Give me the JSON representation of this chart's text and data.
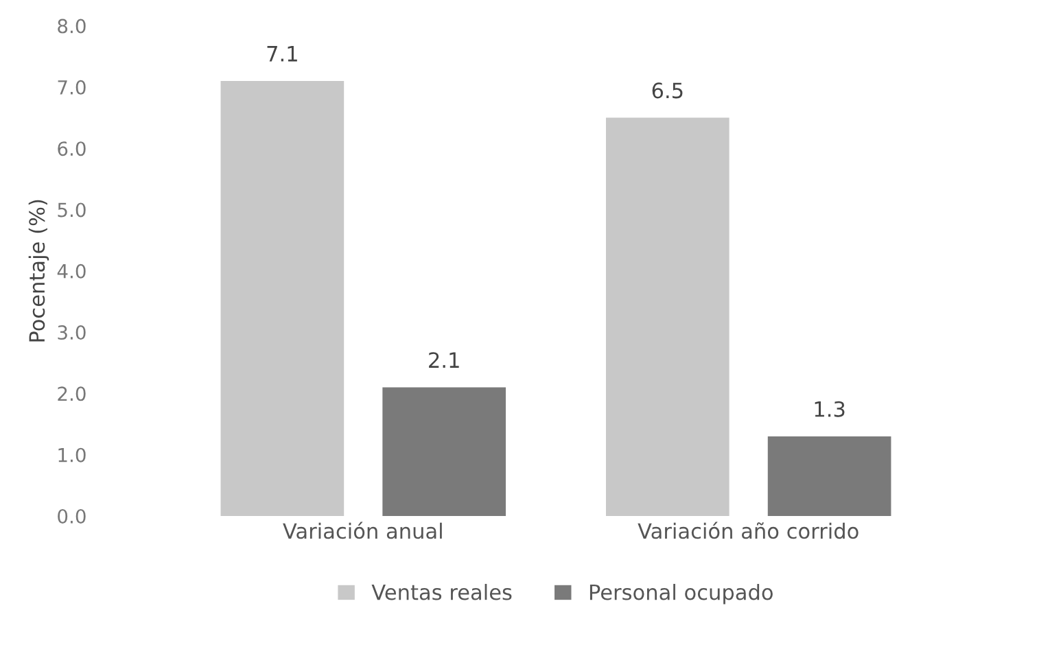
{
  "chart_data": {
    "type": "bar",
    "ylabel": "Pocentaje (%)",
    "categories": [
      "Variación anual",
      "Variación año corrido"
    ],
    "series": [
      {
        "name": "Ventas reales",
        "color": "#c8c8c8",
        "values": [
          7.1,
          6.5
        ]
      },
      {
        "name": "Personal ocupado",
        "color": "#7a7a7a",
        "values": [
          2.1,
          1.3
        ]
      }
    ],
    "ylim": [
      0,
      8
    ],
    "yticks": [
      {
        "value": 0,
        "label": "0.0"
      },
      {
        "value": 1,
        "label": "1.0"
      },
      {
        "value": 2,
        "label": "2.0"
      },
      {
        "value": 3,
        "label": "3.0"
      },
      {
        "value": 4,
        "label": "4.0"
      },
      {
        "value": 5,
        "label": "5.0"
      },
      {
        "value": 6,
        "label": "6.0"
      },
      {
        "value": 7,
        "label": "7.0"
      },
      {
        "value": 8,
        "label": "8.0"
      }
    ],
    "data_labels": true,
    "grid": false,
    "legend": "bottom"
  }
}
